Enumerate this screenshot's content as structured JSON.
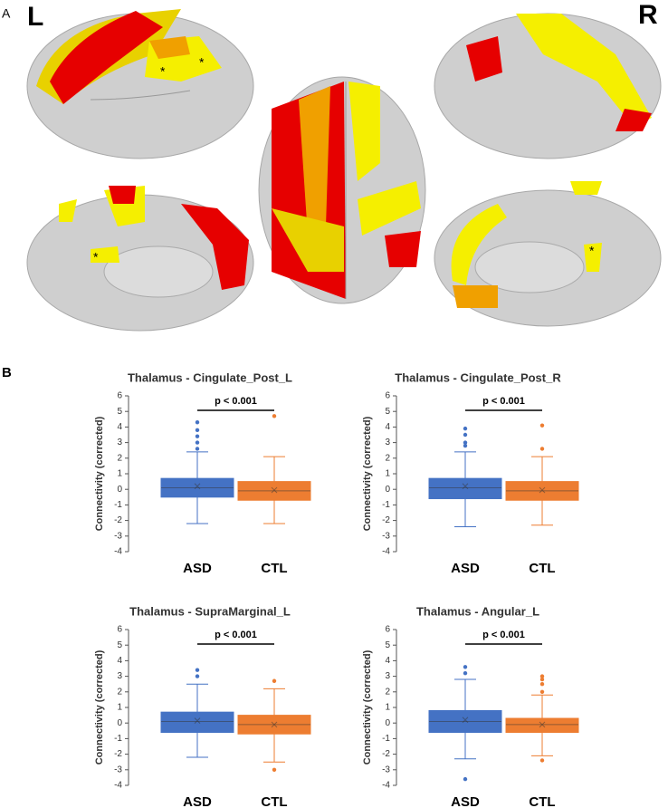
{
  "panel_labels": [
    "A",
    "B"
  ],
  "hemisphere_labels": [
    "L",
    "R"
  ],
  "brain_annotations": [
    "*",
    "*",
    "*",
    "*"
  ],
  "chart_data": [
    {
      "type": "box",
      "title": "Thalamus - Cingulate_Post_L",
      "ylabel": "Connectivity (corrected)",
      "annotation": "p < 0.001",
      "ylim": [
        -4,
        6
      ],
      "yticks": [
        -4,
        -3,
        -2,
        -1,
        0,
        1,
        2,
        3,
        4,
        5,
        6
      ],
      "series": [
        {
          "name": "ASD",
          "color": "#4472c4",
          "min": -2.2,
          "q1": -0.5,
          "median": 0.1,
          "q3": 0.7,
          "max": 2.4,
          "mean": 0.2,
          "outliers": [
            2.6,
            3,
            3.4,
            3.8,
            4.3
          ]
        },
        {
          "name": "CTL",
          "color": "#ed7d31",
          "min": -2.2,
          "q1": -0.7,
          "median": -0.1,
          "q3": 0.5,
          "max": 2.1,
          "mean": -0.05,
          "outliers": [
            4.7
          ]
        }
      ]
    },
    {
      "type": "box",
      "title": "Thalamus - Cingulate_Post_R",
      "ylabel": "Connectivity (corrected)",
      "annotation": "p < 0.001",
      "ylim": [
        -4,
        6
      ],
      "yticks": [
        -4,
        -3,
        -2,
        -1,
        0,
        1,
        2,
        3,
        4,
        5,
        6
      ],
      "series": [
        {
          "name": "ASD",
          "color": "#4472c4",
          "min": -2.4,
          "q1": -0.6,
          "median": 0.1,
          "q3": 0.7,
          "max": 2.4,
          "mean": 0.2,
          "outliers": [
            2.8,
            3,
            3.5,
            3.9
          ]
        },
        {
          "name": "CTL",
          "color": "#ed7d31",
          "min": -2.3,
          "q1": -0.7,
          "median": -0.1,
          "q3": 0.5,
          "max": 2.1,
          "mean": -0.05,
          "outliers": [
            2.6,
            4.1
          ]
        }
      ]
    },
    {
      "type": "box",
      "title": "Thalamus - SupraMarginal_L",
      "ylabel": "Connectivity (corrected)",
      "annotation": "p < 0.001",
      "ylim": [
        -4,
        6
      ],
      "yticks": [
        -4,
        -3,
        -2,
        -1,
        0,
        1,
        2,
        3,
        4,
        5,
        6
      ],
      "series": [
        {
          "name": "ASD",
          "color": "#4472c4",
          "min": -2.2,
          "q1": -0.6,
          "median": 0.1,
          "q3": 0.7,
          "max": 2.5,
          "mean": 0.15,
          "outliers": [
            3,
            3.4
          ]
        },
        {
          "name": "CTL",
          "color": "#ed7d31",
          "min": -2.5,
          "q1": -0.7,
          "median": -0.1,
          "q3": 0.5,
          "max": 2.2,
          "mean": -0.1,
          "outliers": [
            -3,
            2.7
          ]
        }
      ]
    },
    {
      "type": "box",
      "title": "Thalamus - Angular_L",
      "ylabel": "Connectivity (corrected)",
      "annotation": "p < 0.001",
      "ylim": [
        -4,
        6
      ],
      "yticks": [
        -4,
        -3,
        -2,
        -1,
        0,
        1,
        2,
        3,
        4,
        5,
        6
      ],
      "series": [
        {
          "name": "ASD",
          "color": "#4472c4",
          "min": -2.3,
          "q1": -0.6,
          "median": 0.1,
          "q3": 0.8,
          "max": 2.8,
          "mean": 0.2,
          "outliers": [
            3.2,
            3.6,
            -3.6
          ]
        },
        {
          "name": "CTL",
          "color": "#ed7d31",
          "min": -2.1,
          "q1": -0.6,
          "median": -0.1,
          "q3": 0.3,
          "max": 1.8,
          "mean": -0.1,
          "outliers": [
            2,
            2.5,
            2.8,
            3,
            -2.4
          ]
        }
      ]
    }
  ]
}
